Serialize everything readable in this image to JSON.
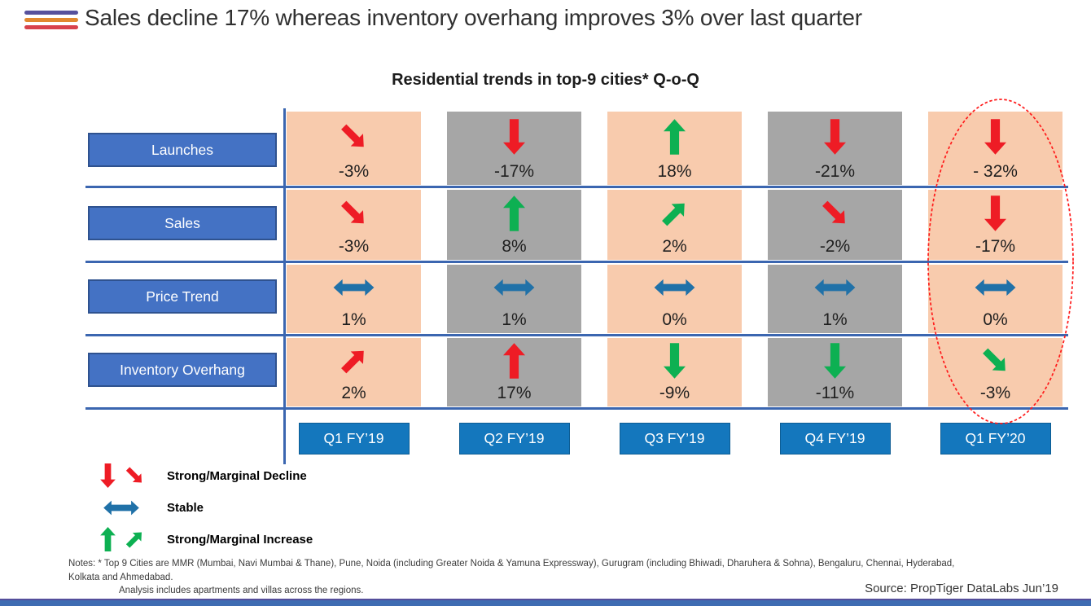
{
  "header": {
    "title": "Sales decline 17% whereas inventory overhang improves 3% over last quarter",
    "logo_bar_colors": [
      "#57519C",
      "#E2882F",
      "#D8424C"
    ]
  },
  "chart": {
    "title": "Residential trends in top-9 cities* Q-o-Q",
    "row_labels": [
      "Launches",
      "Sales",
      "Price Trend",
      "Inventory Overhang"
    ],
    "column_labels": [
      "Q1 FY’19",
      "Q2 FY’19",
      "Q3 FY’19",
      "Q4 FY’19",
      "Q1 FY’20"
    ],
    "column_bg": [
      "peach",
      "gray",
      "peach",
      "gray",
      "peach"
    ],
    "highlighted_column": "Q1 FY'20",
    "cells": [
      [
        {
          "arrow": "down-right",
          "color": "red",
          "value": "-3%"
        },
        {
          "arrow": "down",
          "color": "red",
          "value": "-17%"
        },
        {
          "arrow": "up",
          "color": "green",
          "value": "18%"
        },
        {
          "arrow": "down",
          "color": "red",
          "value": "-21%"
        },
        {
          "arrow": "down",
          "color": "red",
          "value": "- 32%"
        }
      ],
      [
        {
          "arrow": "down-right",
          "color": "red",
          "value": "-3%"
        },
        {
          "arrow": "up",
          "color": "green",
          "value": "8%"
        },
        {
          "arrow": "up-right",
          "color": "green",
          "value": "2%"
        },
        {
          "arrow": "down-right",
          "color": "red",
          "value": "-2%"
        },
        {
          "arrow": "down",
          "color": "red",
          "value": "-17%"
        }
      ],
      [
        {
          "arrow": "stable",
          "color": "blue",
          "value": "1%"
        },
        {
          "arrow": "stable",
          "color": "blue",
          "value": "1%"
        },
        {
          "arrow": "stable",
          "color": "blue",
          "value": "0%"
        },
        {
          "arrow": "stable",
          "color": "blue",
          "value": "1%"
        },
        {
          "arrow": "stable",
          "color": "blue",
          "value": "0%"
        }
      ],
      [
        {
          "arrow": "up-right",
          "color": "red",
          "value": "2%"
        },
        {
          "arrow": "up",
          "color": "red",
          "value": "17%"
        },
        {
          "arrow": "down",
          "color": "green",
          "value": "-9%"
        },
        {
          "arrow": "down",
          "color": "green",
          "value": "-11%"
        },
        {
          "arrow": "down-right",
          "color": "green",
          "value": "-3%"
        }
      ]
    ]
  },
  "legend": [
    {
      "icons": [
        "down",
        "down-right"
      ],
      "color": "red",
      "label": "Strong/Marginal Decline"
    },
    {
      "icons": [
        "stable"
      ],
      "color": "blue",
      "label": "Stable"
    },
    {
      "icons": [
        "up",
        "up-right"
      ],
      "color": "green",
      "label": "Strong/Marginal Increase"
    }
  ],
  "notes_lines": [
    "Notes: * Top 9 Cities are MMR (Mumbai, Navi Mumbai & Thane), Pune, Noida (including Greater Noida & Yamuna Expressway), Gurugram (including Bhiwadi, Dharuhera & Sohna), Bengaluru, Chennai, Hyderabad,",
    "Kolkata and Ahmedabad.",
    "Analysis includes apartments and villas across the regions."
  ],
  "source": "Source: PropTiger DataLabs Jun’19",
  "colors": {
    "red": "#EE1C25",
    "green": "#0DB052",
    "blue": "#2071A8",
    "peach": "#F8CBAD",
    "gray": "#A6A6A6",
    "row_button": "#4472C4",
    "row_button_border": "#2F528F",
    "quarter_button": "#1477BD",
    "grid_line": "#3B66B0",
    "ellipse": "#FF1A1A"
  },
  "chart_data": {
    "type": "table",
    "title": "Residential trends in top-9 cities* Q-o-Q",
    "categories": [
      "Q1 FY'19",
      "Q2 FY'19",
      "Q3 FY'19",
      "Q4 FY'19",
      "Q1 FY'20"
    ],
    "series": [
      {
        "name": "Launches",
        "values": [
          -3,
          -17,
          18,
          -21,
          -32
        ]
      },
      {
        "name": "Sales",
        "values": [
          -3,
          8,
          2,
          -2,
          -17
        ]
      },
      {
        "name": "Price Trend",
        "values": [
          1,
          1,
          0,
          1,
          0
        ]
      },
      {
        "name": "Inventory Overhang",
        "values": [
          2,
          17,
          -9,
          -11,
          -3
        ]
      }
    ],
    "unit": "%",
    "highlighted_category": "Q1 FY'20",
    "legend_position": "bottom-left",
    "annotations": [
      "Red dashed ellipse highlighting the Q1 FY'20 column"
    ]
  }
}
